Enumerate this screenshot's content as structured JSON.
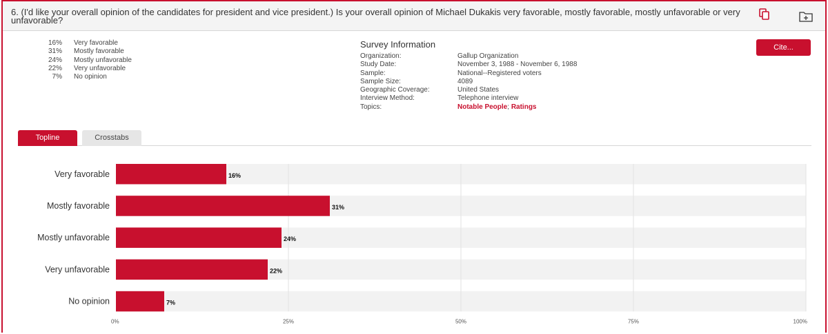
{
  "question": {
    "text": "6. (I'd like your overall opinion of the candidates for president and vice president.) Is your overall opinion of Michael Dukakis very favorable, mostly favorable, mostly unfavorable or very unfavorable?"
  },
  "icons": {
    "copy": "copy-icon",
    "add_folder": "folder-add-icon"
  },
  "summary": [
    {
      "pct": "16%",
      "label": "Very favorable"
    },
    {
      "pct": "31%",
      "label": "Mostly favorable"
    },
    {
      "pct": "24%",
      "label": "Mostly unfavorable"
    },
    {
      "pct": "22%",
      "label": "Very unfavorable"
    },
    {
      "pct": "7%",
      "label": "No opinion"
    }
  ],
  "survey_info": {
    "title": "Survey Information",
    "rows": [
      {
        "key": "Organization:",
        "value": "Gallup Organization"
      },
      {
        "key": "Study Date:",
        "value": "November 3, 1988 - November 6, 1988"
      },
      {
        "key": "Sample:",
        "value": "National--Registered voters"
      },
      {
        "key": "Sample Size:",
        "value": "4089"
      },
      {
        "key": "Geographic Coverage:",
        "value": "United States"
      },
      {
        "key": "Interview Method:",
        "value": "Telephone interview"
      }
    ],
    "topics_key": "Topics:",
    "topics": [
      "Notable People",
      "Ratings"
    ],
    "topics_sep": "; "
  },
  "cite_button": "Cite...",
  "tabs": [
    {
      "label": "Topline",
      "active": true
    },
    {
      "label": "Crosstabs",
      "active": false
    }
  ],
  "colors": {
    "accent": "#c8102e",
    "row_bg": "#f2f2f2",
    "grid": "#e2e2e2"
  },
  "chart_data": {
    "type": "bar",
    "orientation": "horizontal",
    "categories": [
      "Very favorable",
      "Mostly favorable",
      "Mostly unfavorable",
      "Very unfavorable",
      "No opinion"
    ],
    "values": [
      16,
      31,
      24,
      22,
      7
    ],
    "value_labels": [
      "16%",
      "31%",
      "24%",
      "22%",
      "7%"
    ],
    "xlim": [
      0,
      100
    ],
    "xticks": [
      0,
      25,
      50,
      75,
      100
    ],
    "xtick_labels": [
      "0%",
      "25%",
      "50%",
      "75%",
      "100%"
    ],
    "grid": true,
    "title": "",
    "xlabel": "",
    "ylabel": ""
  }
}
